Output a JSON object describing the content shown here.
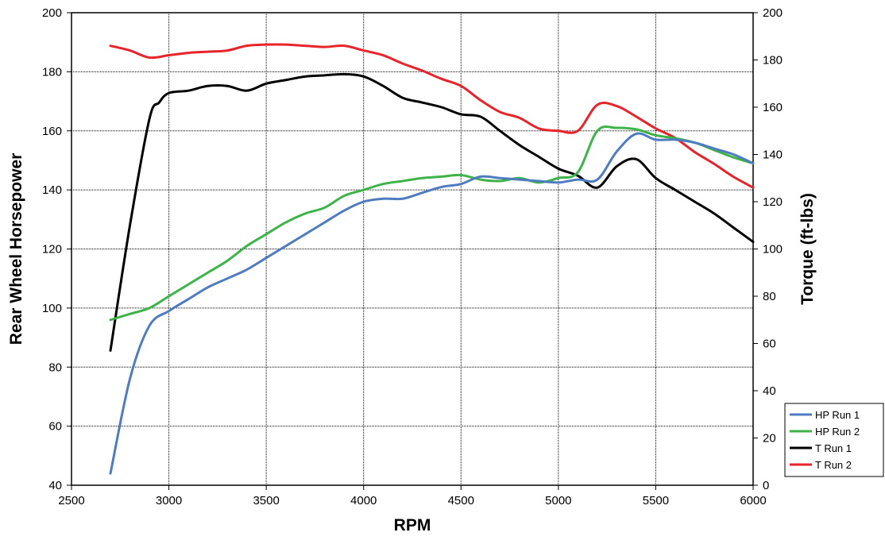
{
  "chart_data": {
    "type": "line",
    "xlabel": "RPM",
    "ylabel": "Rear Wheel Horsepower",
    "y2label": "Torque (ft-lbs)",
    "xlim": [
      2500,
      6000
    ],
    "ylim": [
      40,
      200
    ],
    "y2lim": [
      0,
      200
    ],
    "xticks": [
      2500,
      3000,
      3500,
      4000,
      4500,
      5000,
      5500,
      6000
    ],
    "yticks": [
      40,
      60,
      80,
      100,
      120,
      140,
      160,
      180,
      200
    ],
    "y2ticks": [
      0,
      20,
      40,
      60,
      80,
      100,
      120,
      140,
      160,
      180,
      200
    ],
    "grid": true,
    "legend_position": "right",
    "series": [
      {
        "name": "HP Run 1",
        "axis": "left",
        "color": "#4f7cc0",
        "x": [
          2700,
          2800,
          2900,
          3000,
          3100,
          3200,
          3300,
          3400,
          3500,
          3600,
          3700,
          3800,
          3900,
          4000,
          4100,
          4200,
          4300,
          4400,
          4500,
          4600,
          4700,
          4800,
          4900,
          5000,
          5100,
          5200,
          5300,
          5400,
          5500,
          5600,
          5700,
          5800,
          5900,
          6000
        ],
        "values": [
          44,
          76,
          94,
          99,
          103,
          107,
          110,
          113,
          117,
          121,
          125,
          129,
          133,
          136,
          137,
          137,
          139,
          141,
          142,
          144.5,
          144,
          143.5,
          143,
          142.5,
          143.5,
          143.5,
          153,
          159,
          157,
          157,
          156,
          154,
          152,
          149
        ]
      },
      {
        "name": "HP Run 2",
        "axis": "left",
        "color": "#3db348",
        "x": [
          2700,
          2800,
          2900,
          3000,
          3100,
          3200,
          3300,
          3400,
          3500,
          3600,
          3700,
          3800,
          3900,
          4000,
          4100,
          4200,
          4300,
          4400,
          4500,
          4600,
          4700,
          4800,
          4900,
          5000,
          5100,
          5200,
          5300,
          5400,
          5500,
          5600,
          5700,
          5800,
          5900,
          6000
        ],
        "values": [
          96,
          98,
          100,
          104,
          108,
          112,
          116,
          121,
          125,
          129,
          132,
          134,
          138,
          140,
          142,
          143,
          144,
          144.5,
          145,
          143.5,
          143,
          144,
          142.5,
          144,
          146,
          160,
          161,
          160.5,
          158.5,
          157.5,
          156,
          153.5,
          151,
          149
        ]
      },
      {
        "name": "T Run 1",
        "axis": "right",
        "color": "#000000",
        "x": [
          2700,
          2800,
          2900,
          2950,
          3000,
          3100,
          3200,
          3300,
          3400,
          3500,
          3600,
          3700,
          3800,
          3900,
          4000,
          4100,
          4200,
          4300,
          4400,
          4500,
          4600,
          4700,
          4800,
          4900,
          5000,
          5100,
          5200,
          5300,
          5400,
          5500,
          5600,
          5700,
          5800,
          5900,
          6000
        ],
        "values": [
          57,
          110,
          155,
          162,
          166,
          167,
          169,
          169,
          167,
          170,
          171.5,
          173,
          173.5,
          174,
          173,
          169,
          164,
          162,
          160,
          157,
          156,
          150,
          144,
          139,
          134,
          131,
          126,
          135,
          138,
          130,
          125,
          120,
          115,
          109,
          103
        ]
      },
      {
        "name": "T Run 2",
        "axis": "right",
        "color": "#e8232a",
        "x": [
          2700,
          2800,
          2900,
          3000,
          3100,
          3200,
          3300,
          3400,
          3500,
          3600,
          3700,
          3800,
          3900,
          4000,
          4100,
          4200,
          4300,
          4400,
          4500,
          4600,
          4700,
          4800,
          4900,
          5000,
          5100,
          5200,
          5300,
          5400,
          5500,
          5600,
          5700,
          5800,
          5900,
          6000
        ],
        "values": [
          186,
          184,
          181,
          182,
          183,
          183.5,
          184,
          186,
          186.5,
          186.5,
          186,
          185.5,
          186,
          184,
          182,
          178.5,
          175.5,
          172,
          169,
          163,
          158,
          155.5,
          151,
          150,
          150,
          161,
          160.5,
          156,
          151,
          147,
          141,
          136,
          130.5,
          126
        ]
      }
    ]
  }
}
